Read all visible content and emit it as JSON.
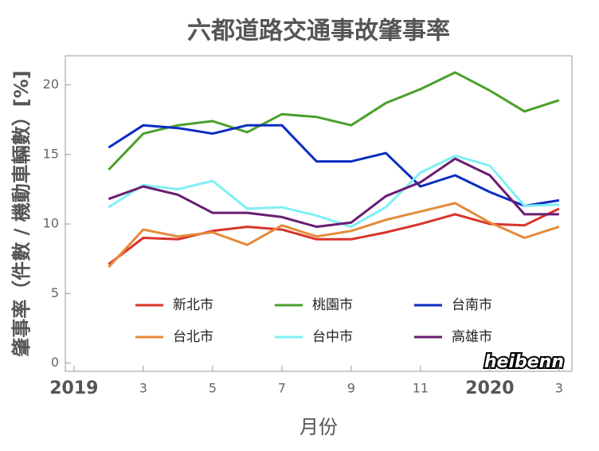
{
  "chart_data": {
    "type": "line",
    "title": "六都道路交通事故肇事率",
    "y_label": "肇事率（件數 / 機動車輛數）[%]",
    "x_label": "月份",
    "watermark": "heibenn",
    "x": [
      2,
      3,
      4,
      5,
      6,
      7,
      8,
      9,
      10,
      11,
      12,
      13,
      14,
      15
    ],
    "xlim": [
      0.75,
      15.37
    ],
    "xticks": [
      {
        "value": 1,
        "label": "2019"
      },
      3,
      5,
      7,
      9,
      11,
      {
        "value": 13,
        "label": "2020"
      },
      {
        "value": 15,
        "label": "3"
      }
    ],
    "ylim": [
      -0.6,
      22.1
    ],
    "yticks": [
      0,
      5,
      10,
      15,
      20
    ],
    "series": [
      {
        "name": "新北市",
        "color": "#d9342b",
        "values": [
          7.1,
          9.0,
          8.9,
          9.5,
          9.8,
          9.6,
          8.9,
          8.9,
          9.4,
          10.0,
          10.7,
          10.0,
          9.9,
          11.1
        ]
      },
      {
        "name": "桃園市",
        "color": "#4aa02c",
        "values": [
          13.9,
          16.5,
          17.1,
          17.4,
          16.6,
          17.9,
          17.7,
          17.1,
          18.7,
          19.7,
          20.9,
          19.6,
          18.1,
          18.9
        ]
      },
      {
        "name": "台南市",
        "color": "#0a2dc0",
        "values": [
          15.5,
          17.1,
          16.9,
          16.5,
          17.1,
          17.1,
          14.5,
          14.5,
          15.1,
          12.7,
          13.5,
          12.3,
          11.3,
          11.7
        ]
      },
      {
        "name": "台北市",
        "color": "#e58a3a",
        "values": [
          6.9,
          9.6,
          9.1,
          9.4,
          8.5,
          9.9,
          9.1,
          9.5,
          10.3,
          10.9,
          11.5,
          10.1,
          9.0,
          9.8
        ]
      },
      {
        "name": "台中市",
        "color": "#7ef0f5",
        "values": [
          11.2,
          12.8,
          12.5,
          13.1,
          11.1,
          11.2,
          10.6,
          9.8,
          11.2,
          13.7,
          14.9,
          14.2,
          11.3,
          11.4
        ]
      },
      {
        "name": "高雄市",
        "color": "#6a1d72",
        "values": [
          11.8,
          12.7,
          12.1,
          10.8,
          10.8,
          10.5,
          9.8,
          10.1,
          12.0,
          13.0,
          14.7,
          13.5,
          10.7,
          10.7
        ]
      }
    ]
  }
}
